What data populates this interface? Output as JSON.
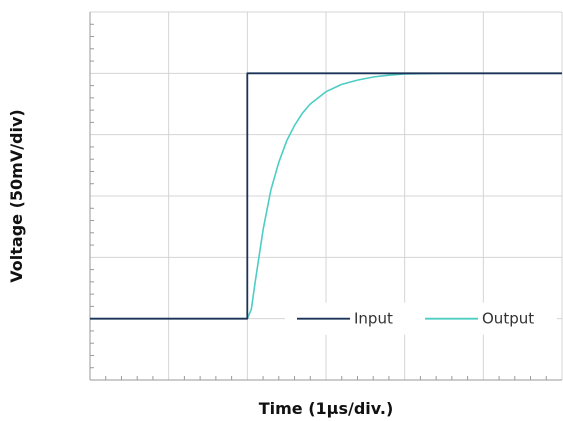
{
  "chart_data": {
    "type": "line",
    "title": "",
    "xlabel": "Time (1µs/div.)",
    "ylabel": "Voltage (50mV/div)",
    "xlim": [
      0,
      6
    ],
    "ylim": [
      0,
      6
    ],
    "x_major_divisions": 6,
    "y_major_divisions": 6,
    "minor_ticks_per_division": 5,
    "grid": true,
    "legend_position": "bottom-right",
    "colors": {
      "Input": "#1b3358",
      "Output": "#4ecdc4",
      "grid": "#d4d4d4",
      "axis": "#9a9a9a"
    },
    "series": [
      {
        "name": "Input",
        "x": [
          0,
          2,
          2,
          6
        ],
        "y": [
          1,
          1,
          5,
          5
        ]
      },
      {
        "name": "Output",
        "x": [
          0,
          2.0,
          2.05,
          2.1,
          2.2,
          2.3,
          2.4,
          2.5,
          2.6,
          2.7,
          2.8,
          2.9,
          3.0,
          3.2,
          3.4,
          3.6,
          3.8,
          4.0,
          4.5,
          5.0,
          6.0
        ],
        "y": [
          1,
          1,
          1.15,
          1.6,
          2.45,
          3.1,
          3.55,
          3.9,
          4.15,
          4.35,
          4.5,
          4.6,
          4.7,
          4.82,
          4.89,
          4.94,
          4.97,
          4.99,
          5.0,
          5.0,
          5.0
        ]
      }
    ]
  }
}
